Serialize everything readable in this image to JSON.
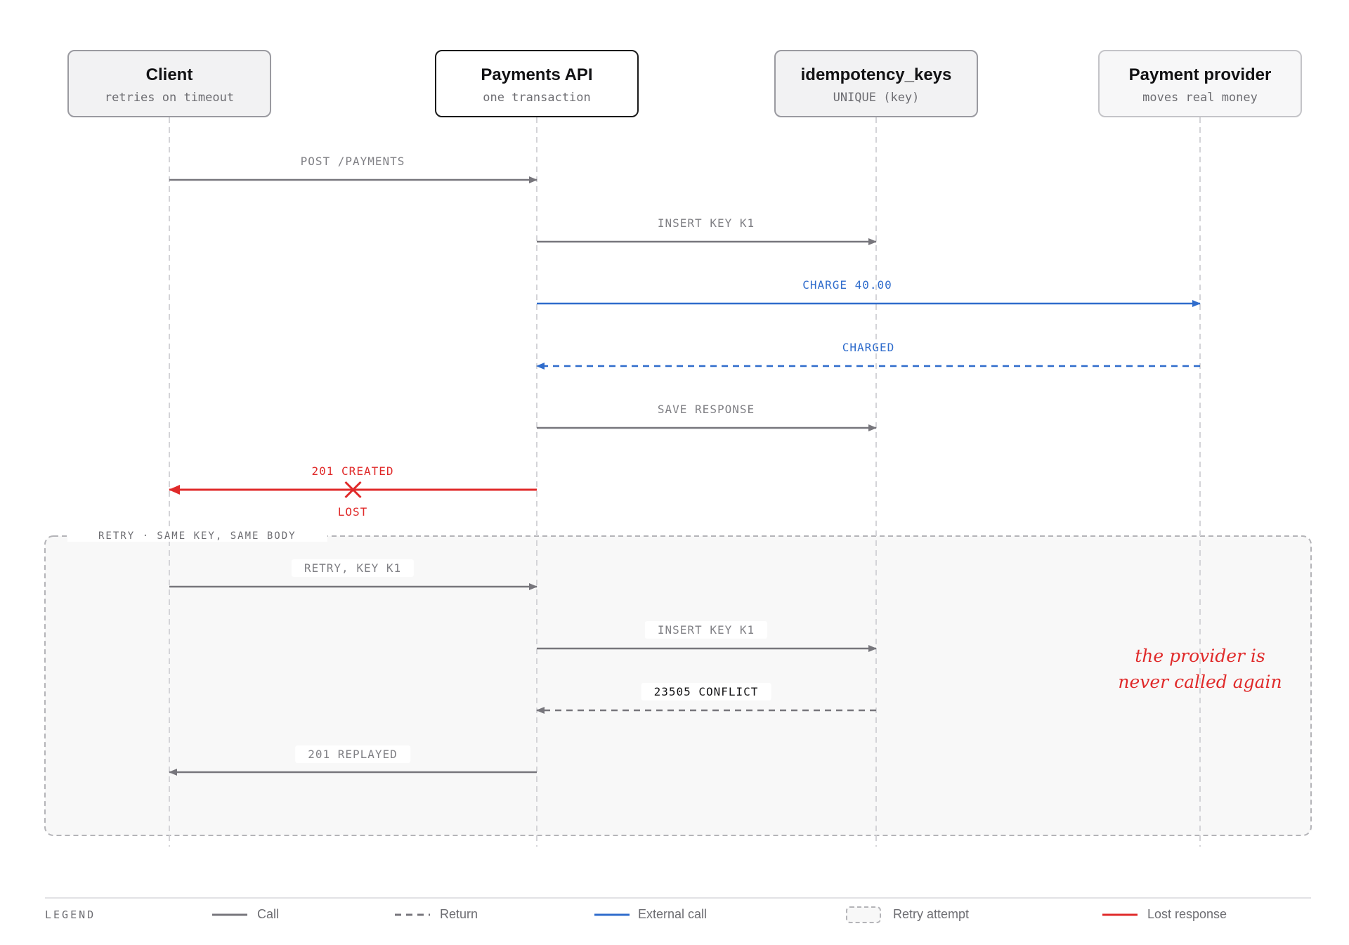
{
  "participants": [
    {
      "name": "Client",
      "sub": "retries on timeout"
    },
    {
      "name": "Payments API",
      "sub": "one transaction"
    },
    {
      "name": "idempotency_keys",
      "sub": "UNIQUE (key)"
    },
    {
      "name": "Payment provider",
      "sub": "moves real money"
    }
  ],
  "messages": [
    {
      "label": "POST /PAYMENTS",
      "from": 0,
      "to": 1,
      "kind": "call"
    },
    {
      "label": "INSERT KEY K1",
      "from": 1,
      "to": 2,
      "kind": "call"
    },
    {
      "label": "CHARGE 40.00",
      "from": 1,
      "to": 3,
      "kind": "external"
    },
    {
      "label": "CHARGED",
      "from": 3,
      "to": 1,
      "kind": "external-return"
    },
    {
      "label": "SAVE RESPONSE",
      "from": 1,
      "to": 2,
      "kind": "call"
    },
    {
      "label": "201 CREATED",
      "from": 1,
      "to": 0,
      "kind": "lost",
      "mark": "LOST"
    },
    {
      "label": "RETRY, KEY K1",
      "from": 0,
      "to": 1,
      "kind": "call"
    },
    {
      "label": "INSERT KEY K1",
      "from": 1,
      "to": 2,
      "kind": "call"
    },
    {
      "label": "23505 CONFLICT",
      "from": 2,
      "to": 1,
      "kind": "return"
    },
    {
      "label": "201 REPLAYED",
      "from": 1,
      "to": 0,
      "kind": "call"
    }
  ],
  "retry_frame": {
    "label": "RETRY · SAME KEY, SAME BODY"
  },
  "note": {
    "line1": "the provider is",
    "line2": "never called again"
  },
  "legend": {
    "title": "LEGEND",
    "items": [
      {
        "label": "Call",
        "style": "call"
      },
      {
        "label": "Return",
        "style": "return"
      },
      {
        "label": "External call",
        "style": "external"
      },
      {
        "label": "Retry attempt",
        "style": "frame"
      },
      {
        "label": "Lost response",
        "style": "lost"
      }
    ]
  },
  "colors": {
    "call": "#77767c",
    "external": "#2f6ccc",
    "lost": "#e02a2a",
    "lifeline": "#d4d4d8",
    "frame_border": "#b4b4b8",
    "frame_fill": "#f8f8f8"
  }
}
